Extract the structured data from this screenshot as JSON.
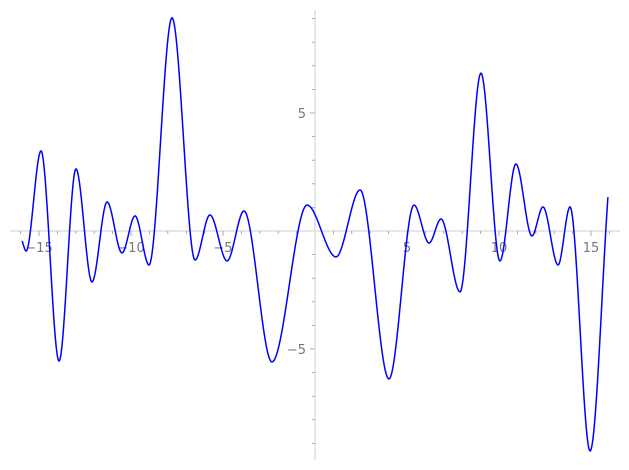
{
  "chart_data": {
    "type": "line",
    "title": "",
    "xlabel": "",
    "ylabel": "",
    "xlim": [
      -16.5,
      16.5
    ],
    "ylim": [
      -9.7,
      9.4
    ],
    "grid": false,
    "x_ticks": [
      {
        "value": -15,
        "label": "−15"
      },
      {
        "value": -10,
        "label": "−10"
      },
      {
        "value": -5,
        "label": "−5"
      },
      {
        "value": 5,
        "label": "5"
      },
      {
        "value": 10,
        "label": "10"
      },
      {
        "value": 15,
        "label": "15"
      }
    ],
    "y_ticks": [
      {
        "value": 5,
        "label": "5"
      },
      {
        "value": -5,
        "label": "−5"
      }
    ],
    "axis_color": "#dddddd",
    "tick_color": "#999999",
    "series": [
      {
        "color": "#0000ff",
        "points": [
          [
            -15.92,
            -0.42
          ],
          [
            -15.7,
            -0.85
          ],
          [
            -14.89,
            3.39
          ],
          [
            -13.91,
            -5.51
          ],
          [
            -12.99,
            2.63
          ],
          [
            -12.12,
            -2.16
          ],
          [
            -11.3,
            1.23
          ],
          [
            -10.49,
            -0.93
          ],
          [
            -9.78,
            0.64
          ],
          [
            -9.02,
            -1.44
          ],
          [
            -7.77,
            9.03
          ],
          [
            -6.52,
            -1.23
          ],
          [
            -5.71,
            0.68
          ],
          [
            -4.78,
            -1.27
          ],
          [
            -3.86,
            0.85
          ],
          [
            -2.34,
            -5.55
          ],
          [
            -0.43,
            1.1
          ],
          [
            1.14,
            -1.1
          ],
          [
            2.45,
            1.74
          ],
          [
            4.02,
            -6.27
          ],
          [
            5.38,
            1.1
          ],
          [
            6.2,
            -0.51
          ],
          [
            6.85,
            0.51
          ],
          [
            7.88,
            -2.58
          ],
          [
            9.02,
            6.69
          ],
          [
            10.05,
            -1.27
          ],
          [
            10.92,
            2.84
          ],
          [
            11.79,
            -0.21
          ],
          [
            12.39,
            1.02
          ],
          [
            13.21,
            -1.44
          ],
          [
            13.86,
            1.02
          ],
          [
            14.95,
            -9.32
          ],
          [
            15.92,
            1.44
          ]
        ]
      }
    ]
  }
}
